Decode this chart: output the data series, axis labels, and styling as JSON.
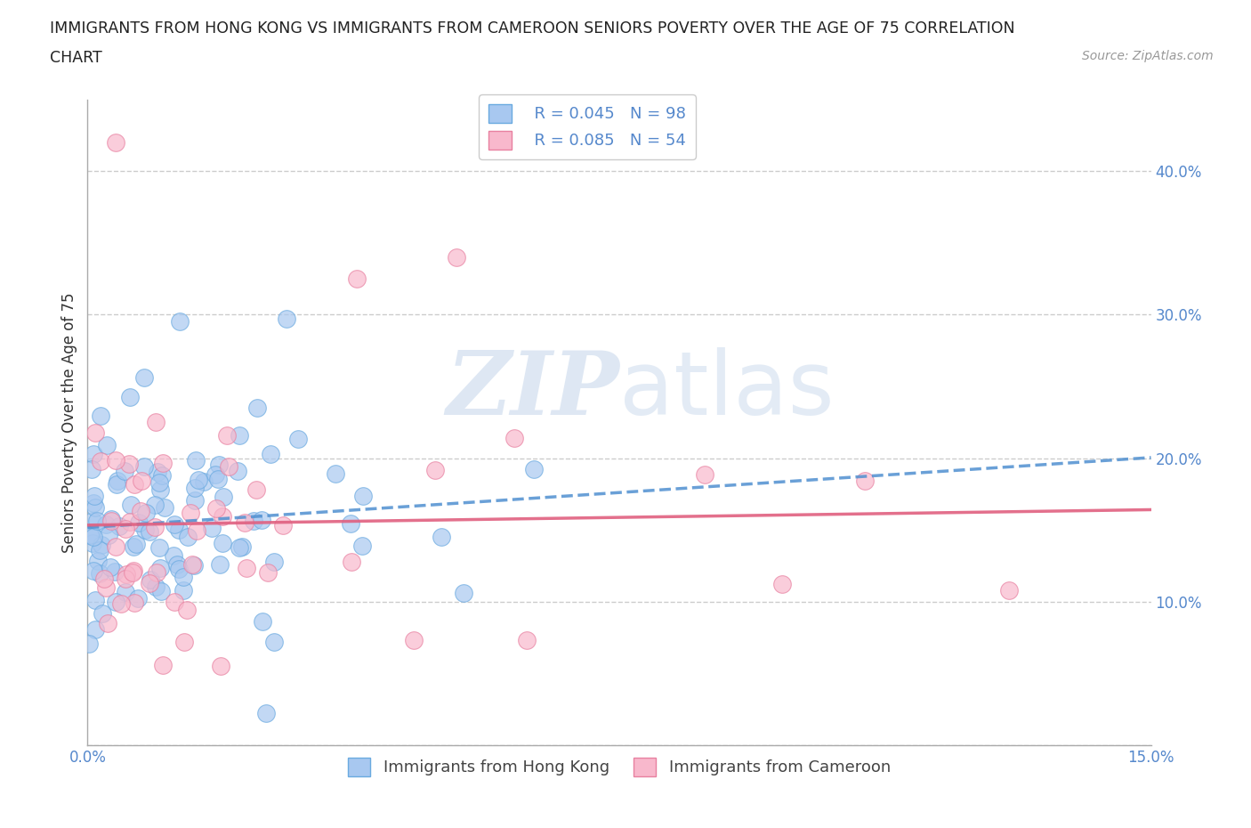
{
  "title_line1": "IMMIGRANTS FROM HONG KONG VS IMMIGRANTS FROM CAMEROON SENIORS POVERTY OVER THE AGE OF 75 CORRELATION",
  "title_line2": "CHART",
  "source": "Source: ZipAtlas.com",
  "ylabel": "Seniors Poverty Over the Age of 75",
  "xlim": [
    0.0,
    0.15
  ],
  "ylim": [
    0.0,
    0.45
  ],
  "hk_color": "#a8c8f0",
  "hk_edge_color": "#6aaae0",
  "cam_color": "#f8b8cc",
  "cam_edge_color": "#e880a0",
  "hk_line_color": "#5090d0",
  "cam_line_color": "#e06080",
  "hk_R": 0.045,
  "hk_N": 98,
  "cam_R": 0.085,
  "cam_N": 54,
  "legend_label_hk": "Immigrants from Hong Kong",
  "legend_label_cam": "Immigrants from Cameroon",
  "background_color": "#ffffff",
  "grid_color": "#cccccc",
  "tick_color": "#5588cc",
  "title_color": "#222222",
  "source_color": "#999999",
  "ylabel_color": "#333333"
}
